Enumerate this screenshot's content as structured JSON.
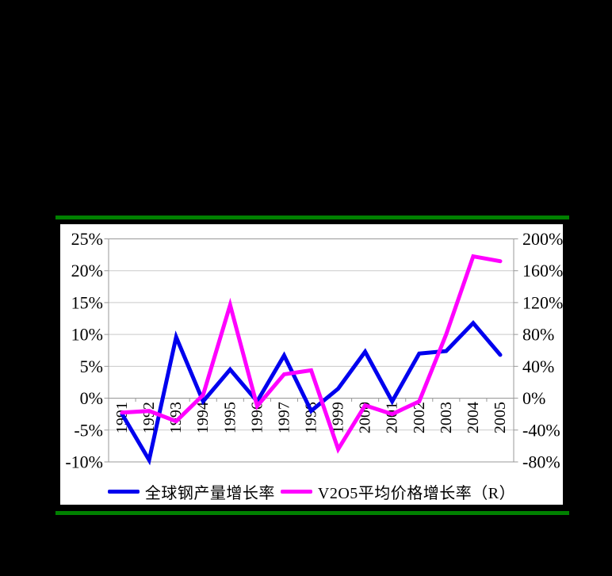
{
  "chart_data": {
    "type": "line",
    "categories": [
      "1991",
      "1992",
      "1993",
      "1994",
      "1995",
      "1996",
      "1997",
      "1998",
      "1999",
      "2000",
      "2001",
      "2002",
      "2003",
      "2004",
      "2005"
    ],
    "series": [
      {
        "name": "全球钢产量增长率",
        "axis": "left",
        "color": "#0000EE",
        "values": [
          -2.5,
          -9.7,
          9.6,
          -0.5,
          4.5,
          -0.5,
          6.7,
          -2.0,
          1.5,
          7.3,
          -0.5,
          7.0,
          7.4,
          11.8,
          6.8
        ]
      },
      {
        "name": "V2O5平均价格增长率（R）",
        "axis": "right",
        "color": "#FF00FF",
        "values": [
          -18,
          -16,
          -29,
          4,
          117,
          -10,
          30,
          35,
          -64,
          -9,
          -20,
          -4,
          80,
          178,
          172
        ]
      }
    ],
    "left_axis": {
      "labels": [
        "25%",
        "20%",
        "15%",
        "10%",
        "5%",
        "0%",
        "-5%",
        "-10%"
      ],
      "min": -10,
      "max": 25,
      "step": 5
    },
    "right_axis": {
      "labels": [
        "200%",
        "160%",
        "120%",
        "80%",
        "40%",
        "0%",
        "-40%",
        "-80%"
      ],
      "min": -80,
      "max": 200,
      "step": 40
    },
    "grid": true,
    "legend_position": "bottom",
    "title": ""
  },
  "styles": {
    "divider_green": "#008000",
    "panel_bg": "#FFFFFF",
    "gridline": "#C9C9C9",
    "axis_line": "#999999",
    "label_text": "#000000"
  }
}
